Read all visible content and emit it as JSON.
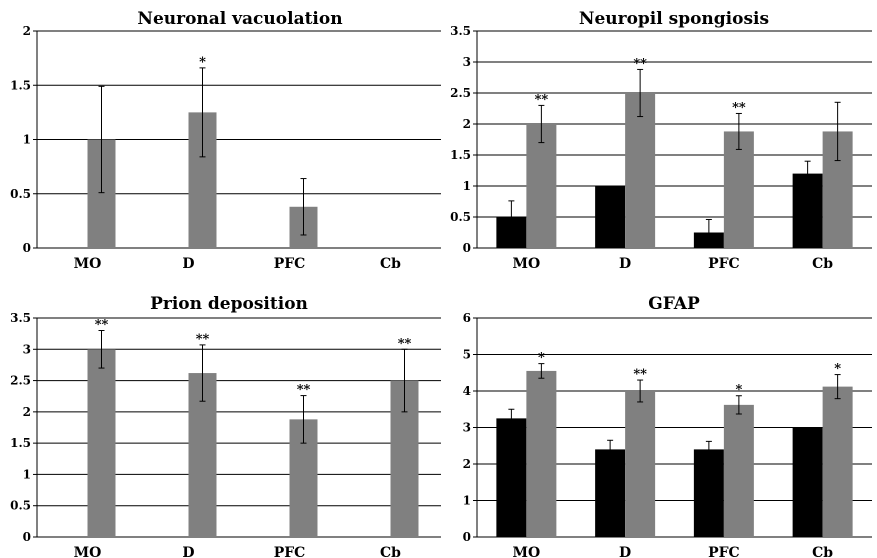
{
  "chart_data": [
    {
      "type": "bar",
      "title": "Neuronal vacuolation",
      "categories": [
        "MO",
        "D",
        "PFC",
        "Cb"
      ],
      "ylim": [
        0,
        2
      ],
      "yticks": [
        "0",
        "0.5",
        "1",
        "1.5",
        "2"
      ],
      "grid": true,
      "series": [
        {
          "color": "#000000",
          "values": [
            0,
            0,
            0,
            0
          ],
          "errors": [
            0,
            0,
            0,
            0
          ]
        },
        {
          "color": "#808080",
          "values": [
            1.0,
            1.25,
            0.38,
            0
          ],
          "errors": [
            0.49,
            0.41,
            0.26,
            0
          ]
        }
      ],
      "annotations": [
        "",
        "*",
        "",
        ""
      ]
    },
    {
      "type": "bar",
      "title": "Neuropil spongiosis",
      "categories": [
        "MO",
        "D",
        "PFC",
        "Cb"
      ],
      "ylim": [
        0,
        3.5
      ],
      "yticks": [
        "0",
        "0.5",
        "1",
        "1.5",
        "2",
        "2.5",
        "3",
        "3.5"
      ],
      "grid": true,
      "series": [
        {
          "color": "#000000",
          "values": [
            0.5,
            1.0,
            0.25,
            1.2
          ],
          "errors": [
            0.26,
            0,
            0.21,
            0.2
          ]
        },
        {
          "color": "#808080",
          "values": [
            2.0,
            2.5,
            1.88,
            1.88
          ],
          "errors": [
            0.3,
            0.38,
            0.29,
            0.47
          ]
        }
      ],
      "annotations": [
        "**",
        "**",
        "**",
        ""
      ]
    },
    {
      "type": "bar",
      "title": "Prion deposition",
      "categories": [
        "MO",
        "D",
        "PFC",
        "Cb"
      ],
      "ylim": [
        0,
        3.5
      ],
      "yticks": [
        "0",
        "0.5",
        "1",
        "1.5",
        "2",
        "2.5",
        "3",
        "3.5"
      ],
      "grid": true,
      "series": [
        {
          "color": "#000000",
          "values": [
            0,
            0,
            0,
            0
          ],
          "errors": [
            0,
            0,
            0,
            0
          ]
        },
        {
          "color": "#808080",
          "values": [
            3.0,
            2.62,
            1.88,
            2.5
          ],
          "errors": [
            0.3,
            0.45,
            0.38,
            0.5
          ]
        }
      ],
      "annotations": [
        "**",
        "**",
        "**",
        "**"
      ]
    },
    {
      "type": "bar",
      "title": "GFAP",
      "categories": [
        "MO",
        "D",
        "PFC",
        "Cb"
      ],
      "ylim": [
        0,
        6
      ],
      "yticks": [
        "0",
        "1",
        "2",
        "3",
        "4",
        "5",
        "6"
      ],
      "grid": true,
      "series": [
        {
          "color": "#000000",
          "values": [
            3.25,
            2.4,
            2.4,
            3.0
          ],
          "errors": [
            0.25,
            0.25,
            0.22,
            0
          ]
        },
        {
          "color": "#808080",
          "values": [
            4.55,
            4.0,
            3.62,
            4.12
          ],
          "errors": [
            0.2,
            0.3,
            0.25,
            0.33
          ]
        }
      ],
      "annotations": [
        "*",
        "**",
        "*",
        "*"
      ]
    }
  ]
}
